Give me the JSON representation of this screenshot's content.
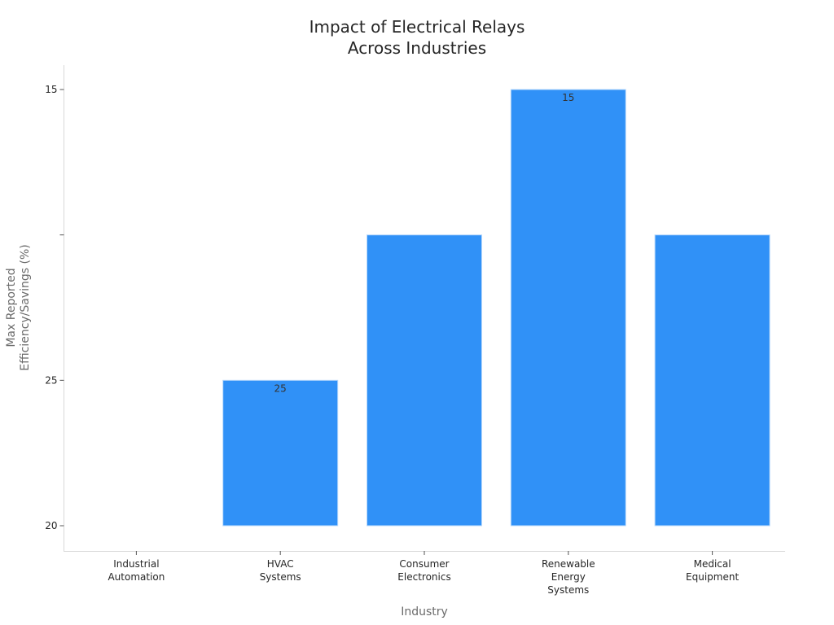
{
  "chart_data": {
    "type": "bar",
    "title_lines": [
      "Impact of Electrical Relays",
      "Across Industries"
    ],
    "xlabel": "Industry",
    "ylabel_lines": [
      "Max Reported",
      "Efficiency/Savings (%)"
    ],
    "categories": [
      [
        "Industrial",
        "Automation"
      ],
      [
        "HVAC",
        "Systems"
      ],
      [
        "Consumer",
        "Electronics"
      ],
      [
        "Renewable",
        "Energy",
        "Systems"
      ],
      [
        "Medical",
        "Equipment"
      ]
    ],
    "y_ticks": [
      "15",
      "",
      "25",
      "20"
    ],
    "bars": [
      {
        "category_index": 0,
        "level": null,
        "label": ""
      },
      {
        "category_index": 1,
        "level": 1,
        "label": "25"
      },
      {
        "category_index": 2,
        "level": 2,
        "label": ""
      },
      {
        "category_index": 3,
        "level": 3,
        "label": "15"
      },
      {
        "category_index": 4,
        "level": 2,
        "label": ""
      }
    ],
    "y_axis_levels": [
      3,
      2,
      1,
      0
    ],
    "bar_color": "#3091f7",
    "grid": false,
    "legend": "none"
  }
}
